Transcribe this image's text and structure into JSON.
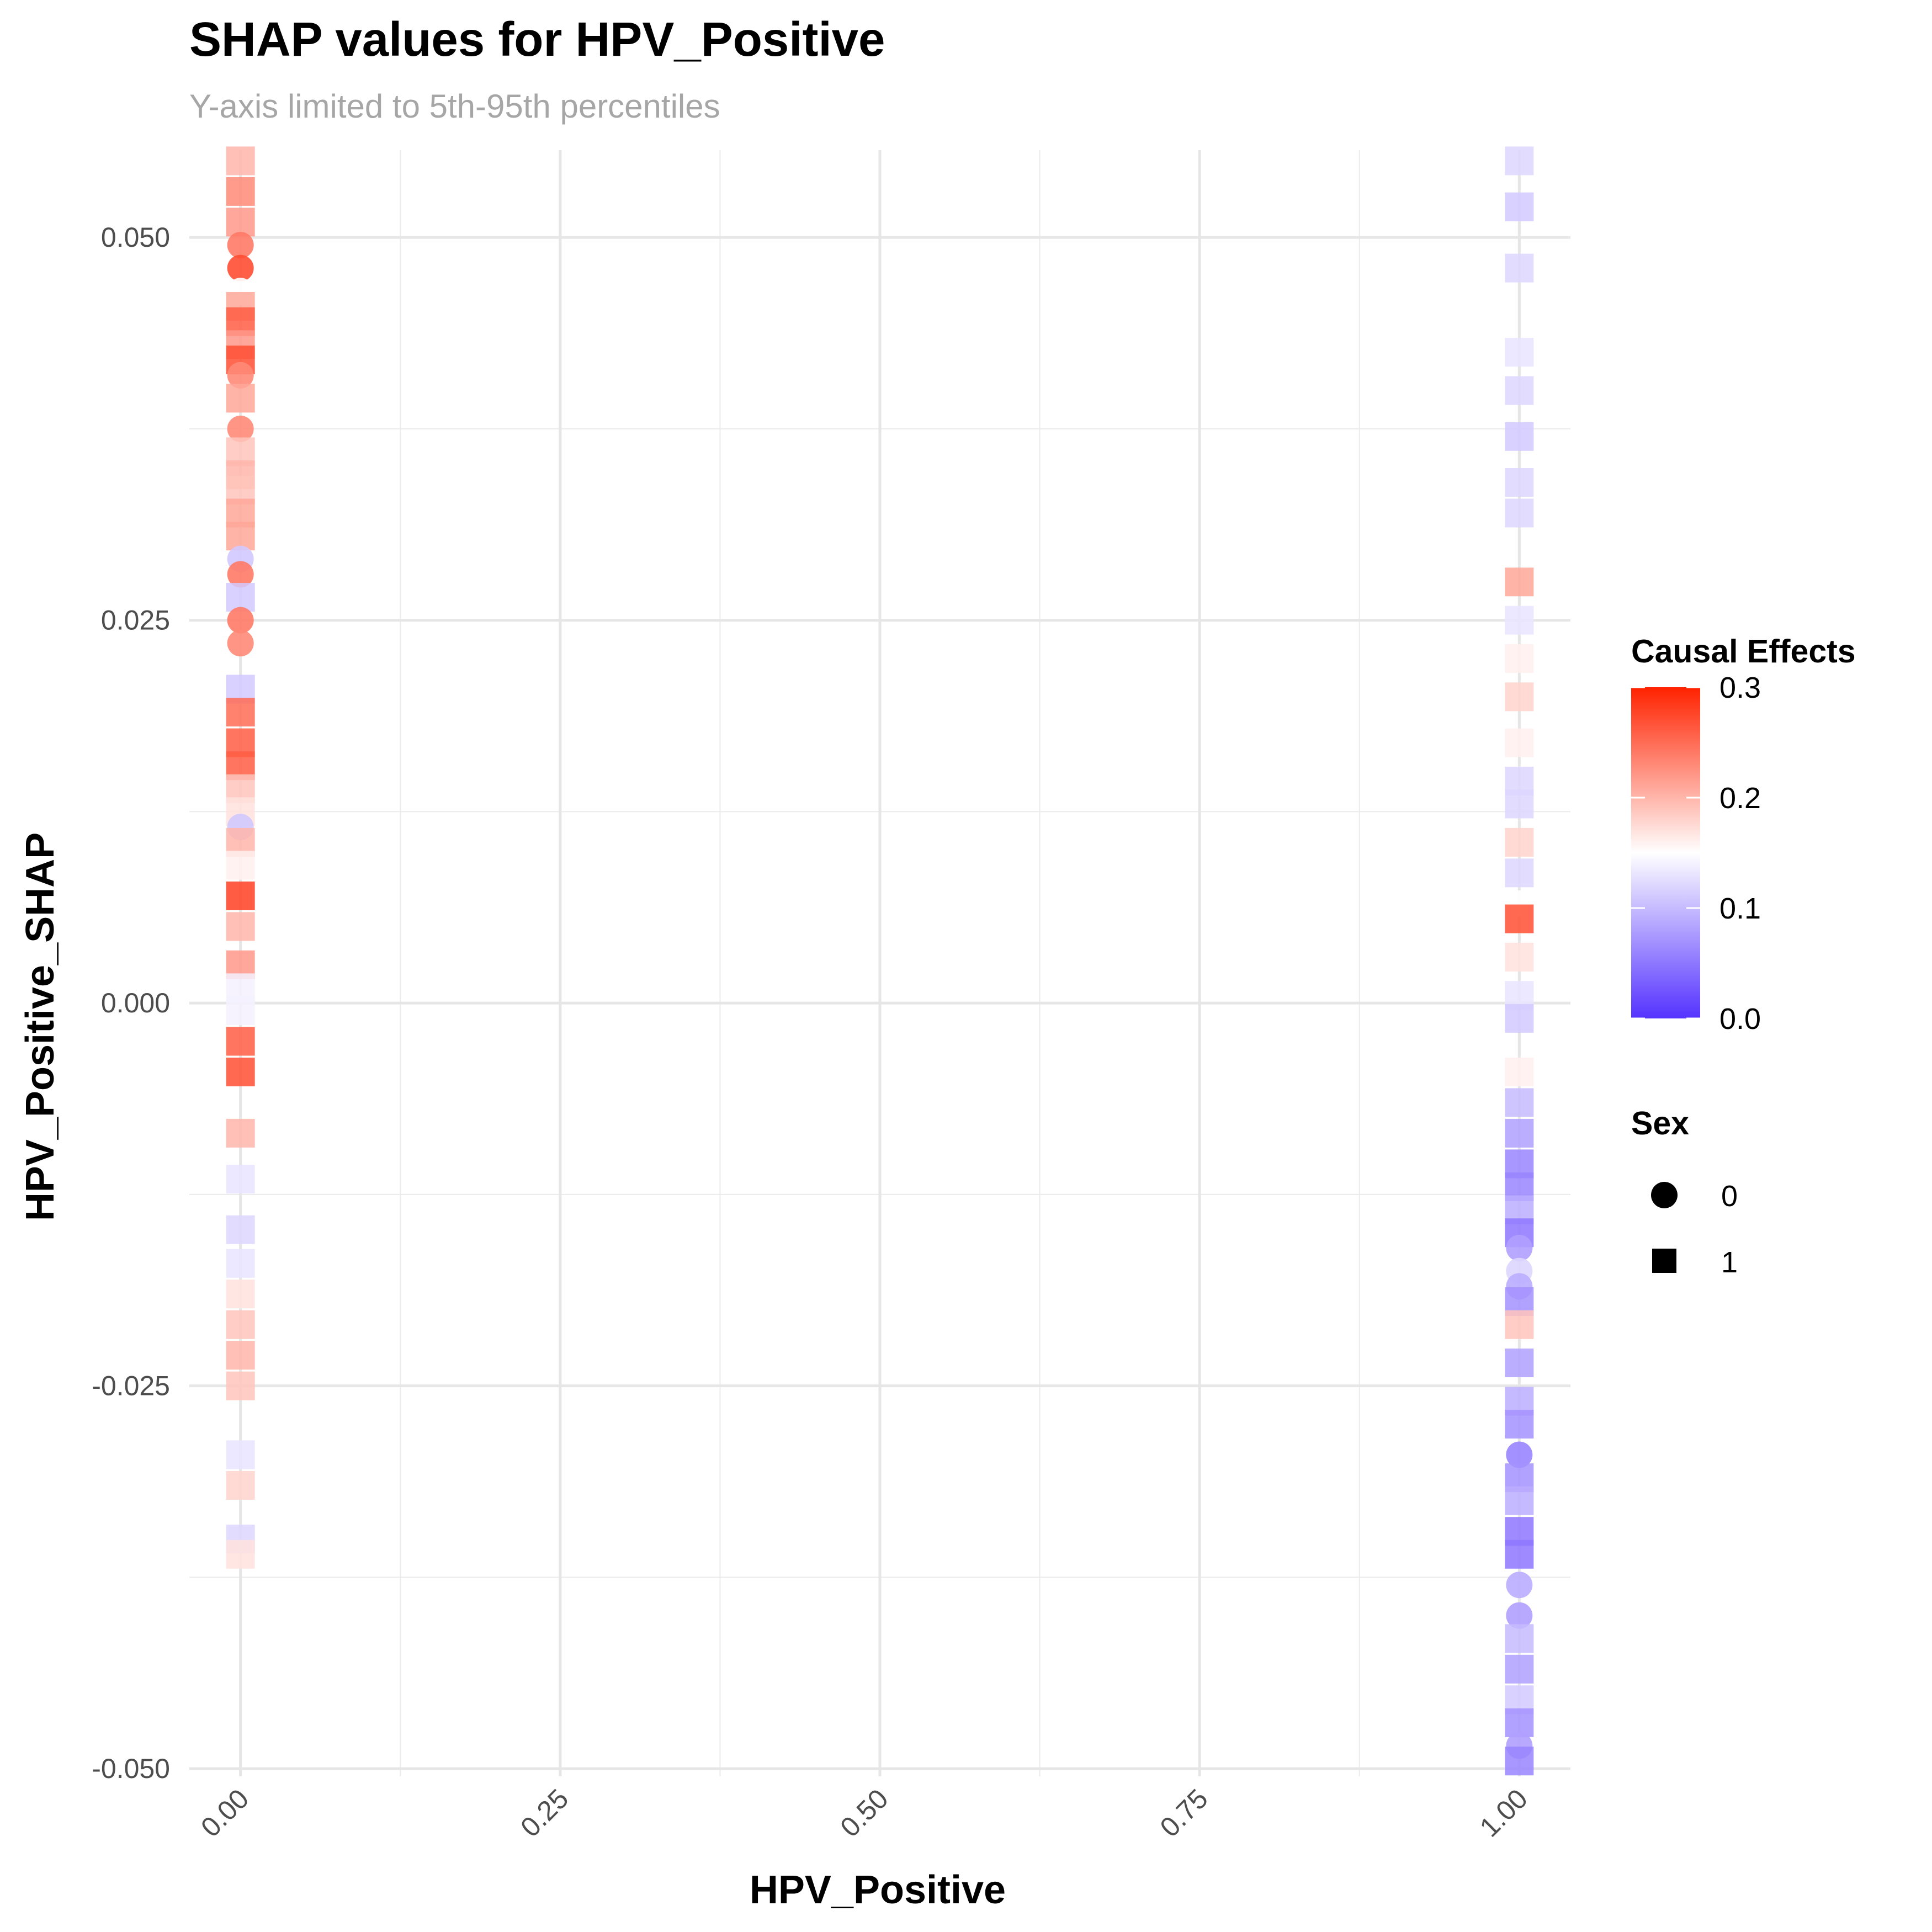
{
  "chart_data": {
    "type": "scatter",
    "title": "SHAP values for HPV_Positive",
    "subtitle": "Y-axis limited to 5th-95th percentiles",
    "xlabel": "HPV_Positive",
    "ylabel": "HPV_Positive_SHAP",
    "xlim": [
      -0.04,
      1.04
    ],
    "ylim": [
      -0.0505,
      0.0557
    ],
    "x_ticks": [
      "0.00",
      "0.25",
      "0.50",
      "0.75",
      "1.00"
    ],
    "y_ticks": [
      "-0.050",
      "-0.025",
      "0.000",
      "0.025",
      "0.050"
    ],
    "grid": true,
    "color_scale": {
      "title": "Causal Effects",
      "low_color": "#5533ff",
      "mid_color": "#ffffff",
      "high_color": "#ff2200",
      "midpoint": 0.15,
      "range": [
        0.0,
        0.3
      ],
      "ticks": [
        "0.0",
        "0.1",
        "0.2",
        "0.3"
      ]
    },
    "shape_legend": {
      "title": "Sex",
      "entries": [
        {
          "label": "0",
          "shape": "circle"
        },
        {
          "label": "1",
          "shape": "square"
        }
      ]
    },
    "points": [
      {
        "x": 0,
        "y": 0.055,
        "c": 0.2,
        "sex": 1
      },
      {
        "x": 0,
        "y": 0.053,
        "c": 0.23,
        "sex": 1
      },
      {
        "x": 0,
        "y": 0.051,
        "c": 0.22,
        "sex": 1
      },
      {
        "x": 0,
        "y": 0.0495,
        "c": 0.24,
        "sex": 0
      },
      {
        "x": 0,
        "y": 0.048,
        "c": 0.27,
        "sex": 0
      },
      {
        "x": 0,
        "y": 0.0465,
        "c": 0.15,
        "sex": 0
      },
      {
        "x": 0,
        "y": 0.0455,
        "c": 0.21,
        "sex": 1
      },
      {
        "x": 0,
        "y": 0.0445,
        "c": 0.26,
        "sex": 1
      },
      {
        "x": 0,
        "y": 0.043,
        "c": 0.22,
        "sex": 1
      },
      {
        "x": 0,
        "y": 0.042,
        "c": 0.27,
        "sex": 1
      },
      {
        "x": 0,
        "y": 0.041,
        "c": 0.23,
        "sex": 0
      },
      {
        "x": 0,
        "y": 0.0395,
        "c": 0.21,
        "sex": 1
      },
      {
        "x": 0,
        "y": 0.0375,
        "c": 0.23,
        "sex": 0
      },
      {
        "x": 0,
        "y": 0.036,
        "c": 0.19,
        "sex": 1
      },
      {
        "x": 0,
        "y": 0.0345,
        "c": 0.2,
        "sex": 1
      },
      {
        "x": 0,
        "y": 0.0335,
        "c": 0.19,
        "sex": 1
      },
      {
        "x": 0,
        "y": 0.032,
        "c": 0.21,
        "sex": 1
      },
      {
        "x": 0,
        "y": 0.0305,
        "c": 0.21,
        "sex": 1
      },
      {
        "x": 0,
        "y": 0.029,
        "c": 0.11,
        "sex": 0
      },
      {
        "x": 0,
        "y": 0.028,
        "c": 0.24,
        "sex": 0
      },
      {
        "x": 0,
        "y": 0.0265,
        "c": 0.11,
        "sex": 1
      },
      {
        "x": 0,
        "y": 0.025,
        "c": 0.24,
        "sex": 0
      },
      {
        "x": 0,
        "y": 0.0235,
        "c": 0.23,
        "sex": 0
      },
      {
        "x": 0,
        "y": 0.0205,
        "c": 0.11,
        "sex": 1
      },
      {
        "x": 0,
        "y": 0.019,
        "c": 0.25,
        "sex": 1
      },
      {
        "x": 0,
        "y": 0.017,
        "c": 0.26,
        "sex": 1
      },
      {
        "x": 0,
        "y": 0.0155,
        "c": 0.26,
        "sex": 1
      },
      {
        "x": 0,
        "y": 0.014,
        "c": 0.19,
        "sex": 1
      },
      {
        "x": 0,
        "y": 0.0125,
        "c": 0.17,
        "sex": 1
      },
      {
        "x": 0,
        "y": 0.0115,
        "c": 0.11,
        "sex": 0
      },
      {
        "x": 0,
        "y": 0.0105,
        "c": 0.2,
        "sex": 1
      },
      {
        "x": 0,
        "y": 0.009,
        "c": 0.16,
        "sex": 1
      },
      {
        "x": 0,
        "y": 0.007,
        "c": 0.28,
        "sex": 1
      },
      {
        "x": 0,
        "y": 0.005,
        "c": 0.2,
        "sex": 1
      },
      {
        "x": 0,
        "y": 0.0025,
        "c": 0.22,
        "sex": 1
      },
      {
        "x": 0,
        "y": 0.001,
        "c": 0.14,
        "sex": 1
      },
      {
        "x": 0,
        "y": -0.0005,
        "c": 0.14,
        "sex": 1
      },
      {
        "x": 0,
        "y": -0.0025,
        "c": 0.26,
        "sex": 1
      },
      {
        "x": 0,
        "y": -0.0045,
        "c": 0.27,
        "sex": 1
      },
      {
        "x": 0,
        "y": -0.0085,
        "c": 0.2,
        "sex": 1
      },
      {
        "x": 0,
        "y": -0.0115,
        "c": 0.13,
        "sex": 1
      },
      {
        "x": 0,
        "y": -0.0148,
        "c": 0.12,
        "sex": 1
      },
      {
        "x": 0,
        "y": -0.017,
        "c": 0.13,
        "sex": 1
      },
      {
        "x": 0,
        "y": -0.019,
        "c": 0.17,
        "sex": 1
      },
      {
        "x": 0,
        "y": -0.021,
        "c": 0.19,
        "sex": 1
      },
      {
        "x": 0,
        "y": -0.023,
        "c": 0.2,
        "sex": 1
      },
      {
        "x": 0,
        "y": -0.025,
        "c": 0.19,
        "sex": 1
      },
      {
        "x": 0,
        "y": -0.0295,
        "c": 0.13,
        "sex": 1
      },
      {
        "x": 0,
        "y": -0.0315,
        "c": 0.18,
        "sex": 1
      },
      {
        "x": 0,
        "y": -0.035,
        "c": 0.12,
        "sex": 1
      },
      {
        "x": 0,
        "y": -0.036,
        "c": 0.17,
        "sex": 1
      },
      {
        "x": 1,
        "y": 0.055,
        "c": 0.12,
        "sex": 1
      },
      {
        "x": 1,
        "y": 0.052,
        "c": 0.11,
        "sex": 1
      },
      {
        "x": 1,
        "y": 0.048,
        "c": 0.12,
        "sex": 1
      },
      {
        "x": 1,
        "y": 0.0425,
        "c": 0.13,
        "sex": 1
      },
      {
        "x": 1,
        "y": 0.04,
        "c": 0.12,
        "sex": 1
      },
      {
        "x": 1,
        "y": 0.037,
        "c": 0.11,
        "sex": 1
      },
      {
        "x": 1,
        "y": 0.034,
        "c": 0.12,
        "sex": 1
      },
      {
        "x": 1,
        "y": 0.032,
        "c": 0.12,
        "sex": 1
      },
      {
        "x": 1,
        "y": 0.0275,
        "c": 0.21,
        "sex": 1
      },
      {
        "x": 1,
        "y": 0.025,
        "c": 0.13,
        "sex": 1
      },
      {
        "x": 1,
        "y": 0.0225,
        "c": 0.16,
        "sex": 1
      },
      {
        "x": 1,
        "y": 0.02,
        "c": 0.18,
        "sex": 1
      },
      {
        "x": 1,
        "y": 0.017,
        "c": 0.16,
        "sex": 1
      },
      {
        "x": 1,
        "y": 0.0145,
        "c": 0.12,
        "sex": 1
      },
      {
        "x": 1,
        "y": 0.013,
        "c": 0.12,
        "sex": 1
      },
      {
        "x": 1,
        "y": 0.0105,
        "c": 0.18,
        "sex": 1
      },
      {
        "x": 1,
        "y": 0.0085,
        "c": 0.12,
        "sex": 1
      },
      {
        "x": 1,
        "y": 0.0065,
        "c": 0.15,
        "sex": 0
      },
      {
        "x": 1,
        "y": 0.0055,
        "c": 0.27,
        "sex": 1
      },
      {
        "x": 1,
        "y": 0.003,
        "c": 0.17,
        "sex": 1
      },
      {
        "x": 1,
        "y": 0.0005,
        "c": 0.13,
        "sex": 1
      },
      {
        "x": 1,
        "y": -0.001,
        "c": 0.11,
        "sex": 1
      },
      {
        "x": 1,
        "y": -0.0045,
        "c": 0.16,
        "sex": 1
      },
      {
        "x": 1,
        "y": -0.0065,
        "c": 0.1,
        "sex": 1
      },
      {
        "x": 1,
        "y": -0.0085,
        "c": 0.08,
        "sex": 1
      },
      {
        "x": 1,
        "y": -0.0105,
        "c": 0.06,
        "sex": 1
      },
      {
        "x": 1,
        "y": -0.012,
        "c": 0.06,
        "sex": 1
      },
      {
        "x": 1,
        "y": -0.0135,
        "c": 0.09,
        "sex": 1
      },
      {
        "x": 1,
        "y": -0.015,
        "c": 0.05,
        "sex": 1
      },
      {
        "x": 1,
        "y": -0.016,
        "c": 0.08,
        "sex": 0
      },
      {
        "x": 1,
        "y": -0.0175,
        "c": 0.12,
        "sex": 0
      },
      {
        "x": 1,
        "y": -0.0185,
        "c": 0.09,
        "sex": 0
      },
      {
        "x": 1,
        "y": -0.0195,
        "c": 0.07,
        "sex": 1
      },
      {
        "x": 1,
        "y": -0.021,
        "c": 0.19,
        "sex": 1
      },
      {
        "x": 1,
        "y": -0.0235,
        "c": 0.08,
        "sex": 1
      },
      {
        "x": 1,
        "y": -0.026,
        "c": 0.09,
        "sex": 1
      },
      {
        "x": 1,
        "y": -0.0275,
        "c": 0.07,
        "sex": 1
      },
      {
        "x": 1,
        "y": -0.0295,
        "c": 0.06,
        "sex": 0
      },
      {
        "x": 1,
        "y": -0.031,
        "c": 0.07,
        "sex": 1
      },
      {
        "x": 1,
        "y": -0.0325,
        "c": 0.09,
        "sex": 1
      },
      {
        "x": 1,
        "y": -0.0345,
        "c": 0.05,
        "sex": 1
      },
      {
        "x": 1,
        "y": -0.036,
        "c": 0.05,
        "sex": 1
      },
      {
        "x": 1,
        "y": -0.038,
        "c": 0.09,
        "sex": 0
      },
      {
        "x": 1,
        "y": -0.04,
        "c": 0.08,
        "sex": 0
      },
      {
        "x": 1,
        "y": -0.0415,
        "c": 0.1,
        "sex": 1
      },
      {
        "x": 1,
        "y": -0.0435,
        "c": 0.08,
        "sex": 1
      },
      {
        "x": 1,
        "y": -0.0455,
        "c": 0.11,
        "sex": 1
      },
      {
        "x": 1,
        "y": -0.047,
        "c": 0.07,
        "sex": 1
      },
      {
        "x": 1,
        "y": -0.0485,
        "c": 0.08,
        "sex": 0
      },
      {
        "x": 1,
        "y": -0.0495,
        "c": 0.06,
        "sex": 1
      }
    ]
  }
}
